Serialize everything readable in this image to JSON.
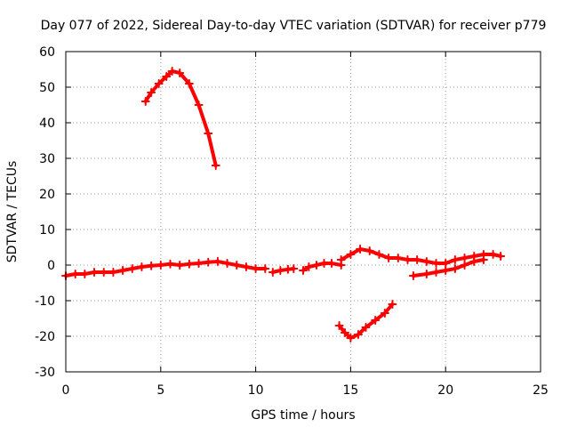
{
  "chart_data": {
    "type": "scatter",
    "title": "Day 077 of 2022, Sidereal Day-to-day VTEC variation (SDTVAR) for receiver p779",
    "xlabel": "GPS time / hours",
    "ylabel": "SDTVAR / TECUs",
    "xlim": [
      0,
      25
    ],
    "ylim": [
      -30,
      60
    ],
    "xticks": [
      0,
      5,
      10,
      15,
      20,
      25
    ],
    "yticks": [
      -30,
      -20,
      -10,
      0,
      10,
      20,
      30,
      40,
      50,
      60
    ],
    "grid": true,
    "color": "#ff0000",
    "series": [
      {
        "name": "arc-1",
        "points": [
          [
            0.0,
            -3
          ],
          [
            0.5,
            -2.5
          ],
          [
            1,
            -2.5
          ],
          [
            1.5,
            -2
          ],
          [
            2,
            -2
          ],
          [
            2.5,
            -2
          ],
          [
            3,
            -1.5
          ],
          [
            3.5,
            -1
          ],
          [
            4,
            -0.5
          ],
          [
            4.5,
            -0.2
          ],
          [
            5,
            0
          ],
          [
            5.5,
            0.3
          ],
          [
            6,
            0
          ],
          [
            6.5,
            0.3
          ],
          [
            7,
            0.5
          ],
          [
            7.5,
            0.8
          ],
          [
            8,
            1
          ],
          [
            8.5,
            0.5
          ],
          [
            9,
            0
          ],
          [
            9.5,
            -0.5
          ],
          [
            10,
            -1
          ],
          [
            10.5,
            -1
          ]
        ]
      },
      {
        "name": "arc-2",
        "points": [
          [
            10.9,
            -2
          ],
          [
            11.3,
            -1.5
          ],
          [
            11.7,
            -1.2
          ],
          [
            12.0,
            -1
          ]
        ]
      },
      {
        "name": "arc-3",
        "points": [
          [
            12.5,
            -1.5
          ],
          [
            12.8,
            -0.5
          ],
          [
            13.2,
            0
          ],
          [
            13.6,
            0.5
          ],
          [
            14,
            0.5
          ],
          [
            14.5,
            0
          ]
        ]
      },
      {
        "name": "arc-4",
        "points": [
          [
            14.5,
            1.5
          ],
          [
            15,
            3
          ],
          [
            15.5,
            4.5
          ],
          [
            16,
            4
          ],
          [
            16.5,
            3
          ],
          [
            17,
            2
          ],
          [
            17.5,
            2
          ],
          [
            18,
            1.5
          ],
          [
            18.5,
            1.5
          ],
          [
            19,
            1
          ],
          [
            19.5,
            0.5
          ],
          [
            20,
            0.5
          ],
          [
            20.5,
            1.5
          ],
          [
            21,
            2
          ],
          [
            21.5,
            2.5
          ],
          [
            22,
            3
          ],
          [
            22.5,
            3
          ],
          [
            22.9,
            2.5
          ]
        ]
      },
      {
        "name": "arc-5",
        "points": [
          [
            18.3,
            -3
          ],
          [
            19,
            -2.5
          ],
          [
            19.5,
            -2
          ],
          [
            20,
            -1.5
          ],
          [
            20.5,
            -1
          ],
          [
            21,
            0
          ],
          [
            21.5,
            1
          ],
          [
            22,
            1.5
          ]
        ]
      },
      {
        "name": "arc-6",
        "points": [
          [
            4.2,
            46
          ],
          [
            4.5,
            48.5
          ],
          [
            4.9,
            51
          ],
          [
            5.3,
            53
          ],
          [
            5.6,
            54.5
          ],
          [
            6.0,
            54
          ],
          [
            6.5,
            51
          ],
          [
            7.0,
            45
          ],
          [
            7.5,
            37
          ],
          [
            7.9,
            28
          ]
        ]
      },
      {
        "name": "arc-7",
        "points": [
          [
            14.4,
            -17
          ],
          [
            14.7,
            -19
          ],
          [
            15.0,
            -20.5
          ],
          [
            15.4,
            -19.5
          ],
          [
            15.8,
            -17.5
          ],
          [
            16.3,
            -15.5
          ],
          [
            16.8,
            -13.5
          ],
          [
            17.2,
            -11
          ]
        ]
      }
    ]
  }
}
